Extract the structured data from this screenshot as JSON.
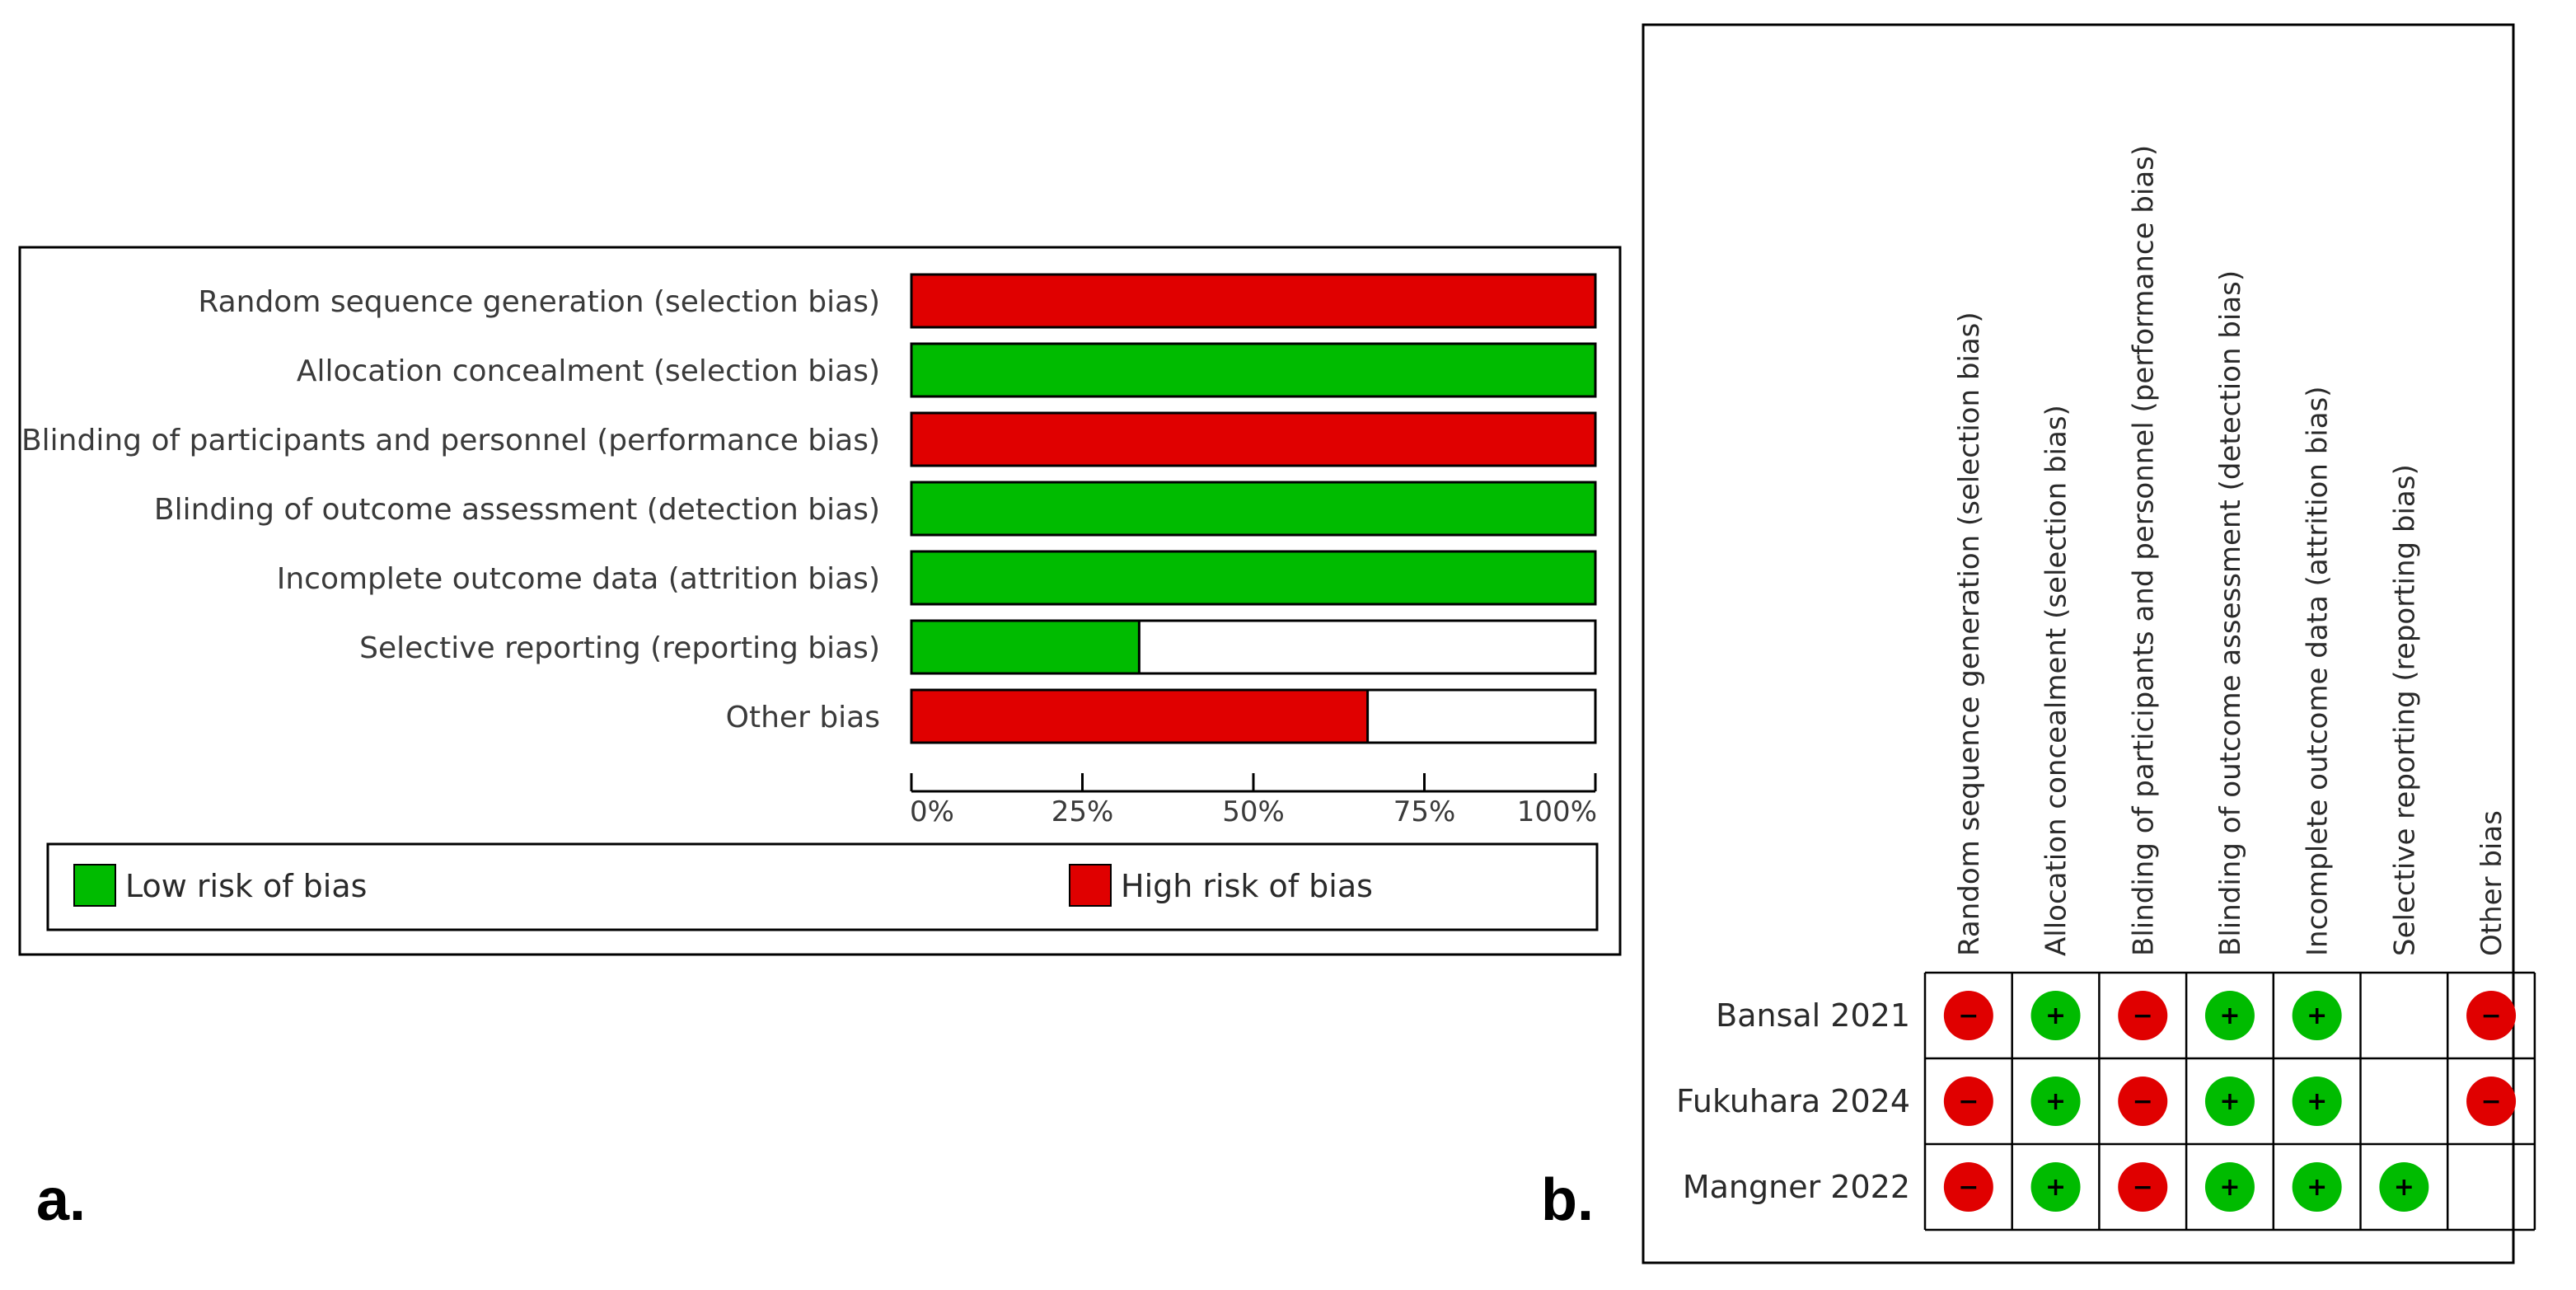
{
  "panel_a_label": "a.",
  "panel_b_label": "b.",
  "colors": {
    "low": "#00bb00",
    "high": "#e00000"
  },
  "chart_data": [
    {
      "type": "bar",
      "orientation": "horizontal",
      "stacked": true,
      "categories": [
        "Random sequence generation (selection bias)",
        "Allocation concealment (selection bias)",
        "Blinding of participants and personnel (performance bias)",
        "Blinding of outcome assessment (detection bias)",
        "Incomplete outcome data (attrition bias)",
        "Selective reporting (reporting bias)",
        "Other bias"
      ],
      "series": [
        {
          "name": "Low risk of bias",
          "color": "#00bb00",
          "values": [
            0,
            100,
            0,
            100,
            100,
            33.3,
            0
          ]
        },
        {
          "name": "High risk of bias",
          "color": "#e00000",
          "values": [
            100,
            0,
            100,
            0,
            0,
            0,
            66.7
          ]
        }
      ],
      "xlim": [
        0,
        100
      ],
      "xticks": [
        "0%",
        "25%",
        "50%",
        "75%",
        "100%"
      ],
      "legend_placement": "bottom"
    },
    {
      "type": "table",
      "columns": [
        "Random sequence generation (selection bias)",
        "Allocation concealment (selection bias)",
        "Blinding of participants and personnel (performance bias)",
        "Blinding of outcome assessment (detection bias)",
        "Incomplete outcome data (attrition bias)",
        "Selective reporting (reporting bias)",
        "Other bias"
      ],
      "rows": [
        {
          "study": "Bansal 2021",
          "judgements": [
            "high",
            "low",
            "high",
            "low",
            "low",
            "",
            "high"
          ]
        },
        {
          "study": "Fukuhara 2024",
          "judgements": [
            "high",
            "low",
            "high",
            "low",
            "low",
            "",
            "high"
          ]
        },
        {
          "study": "Mangner 2022",
          "judgements": [
            "high",
            "low",
            "high",
            "low",
            "low",
            "low",
            ""
          ]
        }
      ],
      "symbols": {
        "low": "+",
        "high": "−"
      }
    }
  ]
}
